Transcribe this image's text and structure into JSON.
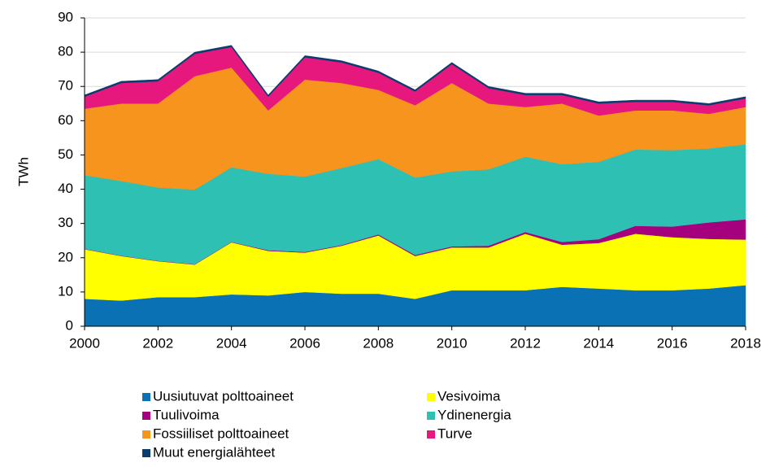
{
  "chart_data": {
    "type": "stacked_area",
    "y_label": "TWh",
    "x": [
      2000,
      2001,
      2002,
      2003,
      2004,
      2005,
      2006,
      2007,
      2008,
      2009,
      2010,
      2011,
      2012,
      2013,
      2014,
      2015,
      2016,
      2017,
      2018
    ],
    "xlim": [
      2000,
      2018
    ],
    "xticks": [
      2000,
      2002,
      2004,
      2006,
      2008,
      2010,
      2012,
      2014,
      2016,
      2018
    ],
    "ylim": [
      0,
      90
    ],
    "yticks": [
      0,
      10,
      20,
      30,
      40,
      50,
      60,
      70,
      80,
      90
    ],
    "grid": true,
    "legend": "bottom",
    "series": [
      {
        "name": "Uusiutuvat polttoaineet",
        "color": "#0a72b4",
        "values": [
          8,
          7.5,
          8.5,
          8.5,
          9.3,
          9,
          10,
          9.5,
          9.5,
          8,
          10.5,
          10.5,
          10.5,
          11.5,
          11,
          10.5,
          10.5,
          11,
          12
        ]
      },
      {
        "name": "Vesivoima",
        "color": "#ffff00",
        "values": [
          14.5,
          13,
          10.5,
          9.5,
          15.2,
          13,
          11.5,
          14,
          17,
          12.5,
          12.5,
          12.5,
          16.5,
          12.3,
          13.3,
          16.5,
          15.5,
          14.5,
          13.3
        ]
      },
      {
        "name": "Tuulivoima",
        "color": "#a5007d",
        "values": [
          0.1,
          0.1,
          0.1,
          0.1,
          0.1,
          0.2,
          0.2,
          0.2,
          0.3,
          0.3,
          0.3,
          0.5,
          0.5,
          0.8,
          1.1,
          2.3,
          3.1,
          4.8,
          5.9
        ]
      },
      {
        "name": "Ydinenergia",
        "color": "#2fc0b4",
        "values": [
          21.5,
          21.8,
          21.4,
          21.8,
          21.8,
          22.3,
          22,
          22.5,
          22,
          22.6,
          21.9,
          22.3,
          22,
          22.7,
          22.6,
          22.3,
          22.3,
          21.6,
          21.9
        ]
      },
      {
        "name": "Fossiiliset polttoaineet",
        "color": "#f7941d",
        "values": [
          19.4,
          22.6,
          24.5,
          33.1,
          29.1,
          18.5,
          28.3,
          24.8,
          20.2,
          21.1,
          25.8,
          19.2,
          14.5,
          17.7,
          13.5,
          11.4,
          11.6,
          10.1,
          10.9
        ]
      },
      {
        "name": "Turve",
        "color": "#e6187e",
        "values": [
          3.5,
          6,
          6.5,
          6.5,
          6,
          4,
          6.5,
          6,
          5,
          4,
          5.5,
          4.5,
          3.5,
          2.5,
          3.5,
          2.5,
          2.5,
          2.5,
          2.5
        ]
      },
      {
        "name": "Muut energialähteet",
        "color": "#0b3c6e",
        "values": [
          0.5,
          0.5,
          0.5,
          0.5,
          0.5,
          0.5,
          0.5,
          0.5,
          0.5,
          0.5,
          0.5,
          0.5,
          0.5,
          0.5,
          0.5,
          0.5,
          0.5,
          0.5,
          0.5
        ]
      }
    ]
  }
}
